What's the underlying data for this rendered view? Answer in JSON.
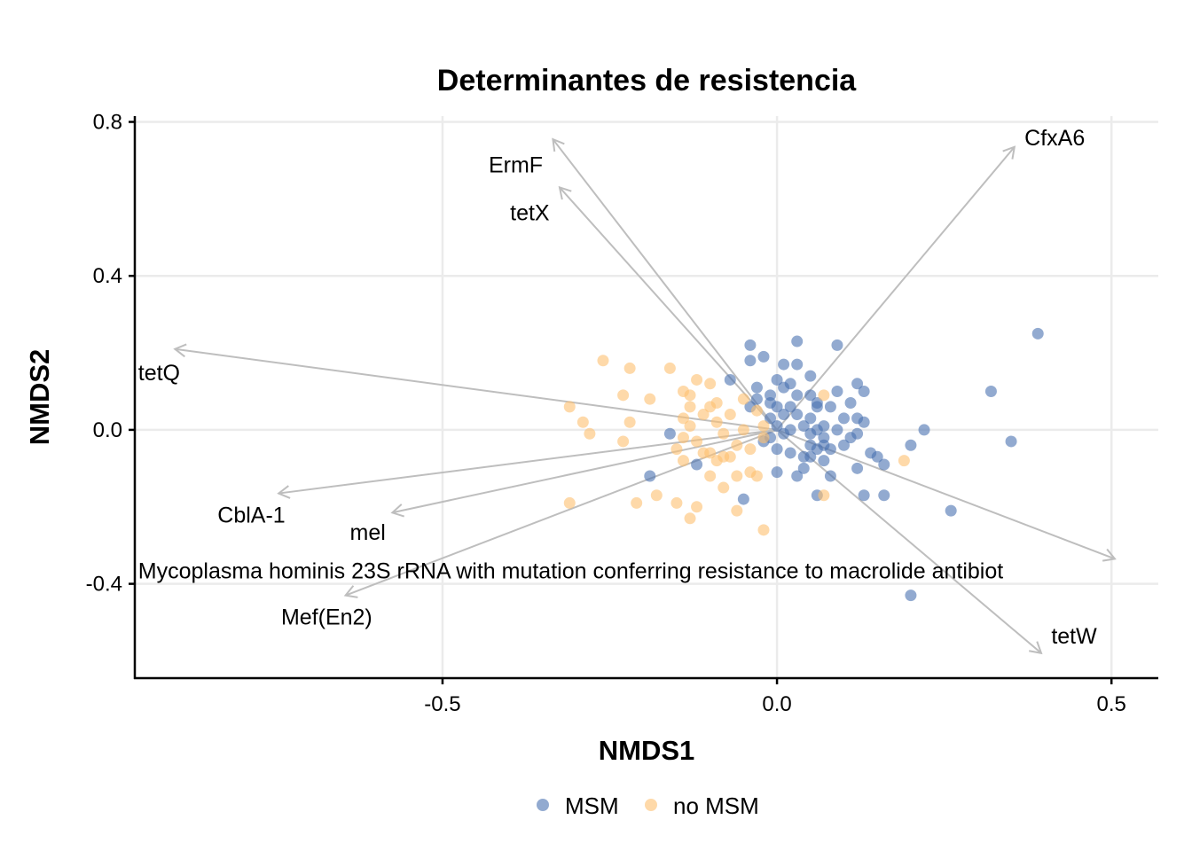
{
  "chart_data": {
    "type": "scatter",
    "title": "Determinantes de resistencia",
    "xlabel": "NMDS1",
    "ylabel": "NMDS2",
    "xlim": [
      -0.96,
      0.57
    ],
    "ylim": [
      -0.645,
      0.815
    ],
    "x_ticks": [
      -0.5,
      0.0,
      0.5
    ],
    "x_tick_labels": [
      "-0.5",
      "0.0",
      "0.5"
    ],
    "y_ticks": [
      -0.4,
      0.0,
      0.4,
      0.8
    ],
    "y_tick_labels": [
      "-0.4",
      "0.0",
      "0.4",
      "0.8"
    ],
    "grid": true,
    "legend_position": "bottom",
    "colors": {
      "MSM": "#4a72b0",
      "no MSM": "#fdbf6f",
      "vector": "#bebebe"
    },
    "series": [
      {
        "name": "MSM",
        "color": "#4a72b0",
        "points": [
          [
            0.39,
            0.25
          ],
          [
            0.32,
            0.1
          ],
          [
            0.35,
            -0.03
          ],
          [
            0.26,
            -0.21
          ],
          [
            0.2,
            -0.43
          ],
          [
            0.22,
            0.0
          ],
          [
            0.2,
            -0.04
          ],
          [
            0.16,
            -0.17
          ],
          [
            0.13,
            -0.17
          ],
          [
            0.16,
            -0.09
          ],
          [
            0.13,
            0.1
          ],
          [
            0.12,
            0.12
          ],
          [
            0.13,
            0.02
          ],
          [
            0.14,
            -0.06
          ],
          [
            0.11,
            0.07
          ],
          [
            0.12,
            0.03
          ],
          [
            0.12,
            -0.01
          ],
          [
            0.12,
            -0.1
          ],
          [
            0.1,
            0.03
          ],
          [
            0.1,
            -0.04
          ],
          [
            0.09,
            0.22
          ],
          [
            0.09,
            0.1
          ],
          [
            0.08,
            0.06
          ],
          [
            0.07,
            0.01
          ],
          [
            0.07,
            -0.08
          ],
          [
            0.08,
            -0.12
          ],
          [
            0.06,
            0.06
          ],
          [
            0.06,
            0.0
          ],
          [
            0.06,
            -0.05
          ],
          [
            0.06,
            -0.17
          ],
          [
            0.05,
            0.14
          ],
          [
            0.05,
            0.09
          ],
          [
            0.05,
            0.03
          ],
          [
            0.05,
            -0.01
          ],
          [
            0.05,
            -0.04
          ],
          [
            0.04,
            0.01
          ],
          [
            0.04,
            -0.07
          ],
          [
            0.04,
            -0.1
          ],
          [
            0.03,
            0.23
          ],
          [
            0.03,
            0.17
          ],
          [
            0.03,
            0.09
          ],
          [
            0.03,
            0.04
          ],
          [
            0.02,
            0.12
          ],
          [
            0.02,
            0.06
          ],
          [
            0.02,
            0.0
          ],
          [
            0.01,
            0.17
          ],
          [
            0.01,
            0.11
          ],
          [
            0.0,
            0.06
          ],
          [
            0.0,
            0.01
          ],
          [
            0.0,
            -0.05
          ],
          [
            0.0,
            -0.11
          ],
          [
            0.0,
            0.13
          ],
          [
            -0.01,
            0.09
          ],
          [
            -0.01,
            0.03
          ],
          [
            -0.02,
            -0.03
          ],
          [
            -0.02,
            0.19
          ],
          [
            -0.03,
            0.11
          ],
          [
            -0.04,
            0.22
          ],
          [
            -0.04,
            0.06
          ],
          [
            -0.05,
            -0.18
          ],
          [
            -0.04,
            0.18
          ],
          [
            -0.03,
            0.08
          ],
          [
            0.07,
            -0.02
          ],
          [
            0.08,
            -0.05
          ],
          [
            0.09,
            0.0
          ],
          [
            0.03,
            -0.12
          ],
          [
            -0.01,
            -0.02
          ],
          [
            0.01,
            0.04
          ],
          [
            0.02,
            -0.06
          ],
          [
            0.06,
            0.07
          ],
          [
            -0.12,
            -0.09
          ],
          [
            -0.19,
            -0.12
          ],
          [
            -0.16,
            -0.01
          ],
          [
            -0.07,
            0.13
          ],
          [
            0.05,
            -0.07
          ],
          [
            0.07,
            -0.04
          ],
          [
            0.01,
            -0.01
          ],
          [
            -0.01,
            0.07
          ],
          [
            0.11,
            -0.02
          ],
          [
            0.15,
            -0.07
          ]
        ]
      },
      {
        "name": "no MSM",
        "color": "#fdbf6f",
        "points": [
          [
            -0.26,
            0.18
          ],
          [
            -0.22,
            0.16
          ],
          [
            -0.16,
            0.16
          ],
          [
            -0.31,
            0.06
          ],
          [
            -0.29,
            0.02
          ],
          [
            -0.28,
            -0.01
          ],
          [
            -0.23,
            0.09
          ],
          [
            -0.22,
            0.02
          ],
          [
            -0.23,
            -0.03
          ],
          [
            -0.19,
            0.08
          ],
          [
            -0.14,
            0.1
          ],
          [
            -0.13,
            0.09
          ],
          [
            -0.12,
            0.13
          ],
          [
            -0.13,
            0.06
          ],
          [
            -0.14,
            0.03
          ],
          [
            -0.13,
            0.01
          ],
          [
            -0.14,
            -0.02
          ],
          [
            -0.15,
            -0.05
          ],
          [
            -0.14,
            -0.08
          ],
          [
            -0.12,
            -0.03
          ],
          [
            -0.11,
            0.04
          ],
          [
            -0.1,
            0.06
          ],
          [
            -0.09,
            0.02
          ],
          [
            -0.08,
            -0.01
          ],
          [
            -0.1,
            -0.06
          ],
          [
            -0.09,
            -0.08
          ],
          [
            -0.07,
            0.04
          ],
          [
            -0.07,
            -0.07
          ],
          [
            -0.06,
            -0.04
          ],
          [
            -0.06,
            -0.12
          ],
          [
            -0.05,
            0.08
          ],
          [
            -0.05,
            0.0
          ],
          [
            -0.04,
            -0.05
          ],
          [
            -0.04,
            -0.11
          ],
          [
            -0.03,
            -0.12
          ],
          [
            -0.02,
            -0.02
          ],
          [
            -0.03,
            0.05
          ],
          [
            -0.1,
            -0.12
          ],
          [
            -0.08,
            -0.15
          ],
          [
            -0.12,
            -0.2
          ],
          [
            -0.15,
            -0.19
          ],
          [
            -0.18,
            -0.17
          ],
          [
            -0.21,
            -0.19
          ],
          [
            -0.31,
            -0.19
          ],
          [
            -0.13,
            -0.23
          ],
          [
            -0.06,
            -0.21
          ],
          [
            -0.02,
            -0.26
          ],
          [
            0.07,
            -0.17
          ],
          [
            0.07,
            0.09
          ],
          [
            0.19,
            -0.08
          ],
          [
            -0.08,
            -0.07
          ],
          [
            -0.11,
            -0.06
          ],
          [
            -0.02,
            0.01
          ],
          [
            -0.1,
            0.12
          ],
          [
            -0.09,
            0.07
          ]
        ]
      }
    ],
    "vectors": [
      {
        "name": "ErmF",
        "x": -0.335,
        "y": 0.755
      },
      {
        "name": "tetX",
        "x": -0.325,
        "y": 0.63
      },
      {
        "name": "CfxA6",
        "x": 0.355,
        "y": 0.735
      },
      {
        "name": "tetQ",
        "x": -0.9,
        "y": 0.21
      },
      {
        "name": "CblA-1",
        "x": -0.745,
        "y": -0.165
      },
      {
        "name": "mel",
        "x": -0.575,
        "y": -0.215
      },
      {
        "name": "Mef(En2)",
        "x": -0.645,
        "y": -0.43
      },
      {
        "name": "Mycoplasma hominis 23S rRNA with mutation conferring resistance to macrolide antibiot",
        "x": 0.505,
        "y": -0.335
      },
      {
        "name": "tetW",
        "x": 0.395,
        "y": -0.58
      }
    ],
    "vector_label_anchors": [
      {
        "x": -0.35,
        "y": 0.69,
        "align": "end"
      },
      {
        "x": -0.34,
        "y": 0.565,
        "align": "end"
      },
      {
        "x": 0.37,
        "y": 0.76,
        "align": "start"
      },
      {
        "x": -0.955,
        "y": 0.15,
        "align": "start"
      },
      {
        "x": -0.735,
        "y": -0.22,
        "align": "end"
      },
      {
        "x": -0.585,
        "y": -0.265,
        "align": "end"
      },
      {
        "x": -0.605,
        "y": -0.485,
        "align": "end"
      },
      {
        "x": -0.955,
        "y": -0.365,
        "align": "start"
      },
      {
        "x": 0.41,
        "y": -0.535,
        "align": "start"
      }
    ]
  }
}
